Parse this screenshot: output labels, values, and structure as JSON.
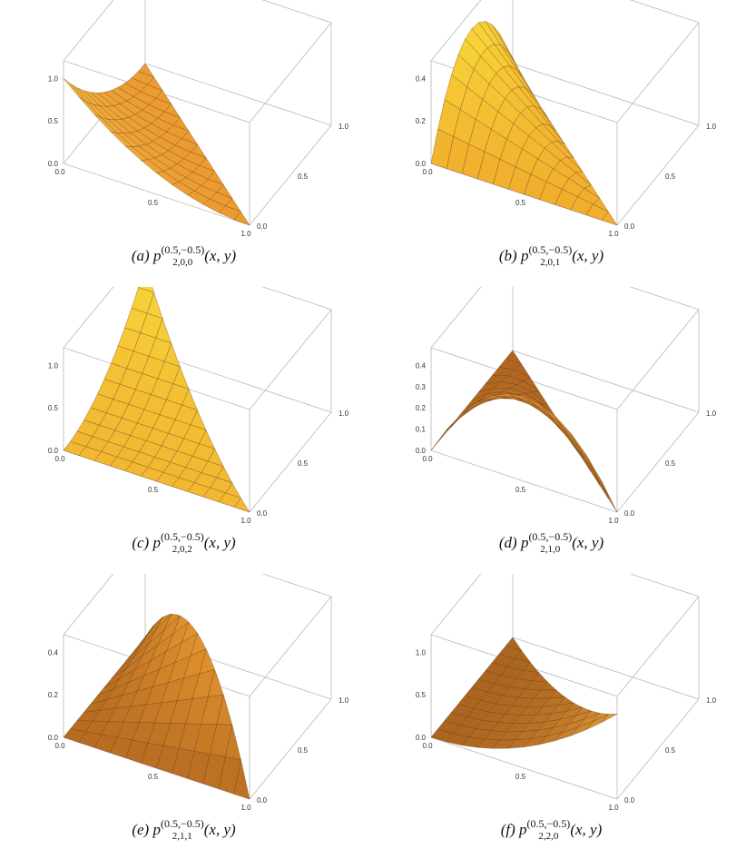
{
  "figure": {
    "panels": [
      {
        "id": "a",
        "caption": {
          "label": "(a)",
          "func": "p",
          "superscript": "(0.5,−0.5)",
          "subscript": "2,0,0",
          "args": "(x, y)"
        },
        "z_ticks": [
          "1.0",
          "0.5",
          "0.0"
        ],
        "x_ticks": [
          "0.0",
          "0.5",
          "1.0"
        ],
        "y_ticks": [
          "0.0",
          "0.5",
          "1.0"
        ],
        "z_max": 1.0,
        "surface": "(1-x)^2 region triangle, value 1 at origin corner",
        "colors": {
          "light": "#f7c64a",
          "dark": "#e8902a"
        }
      },
      {
        "id": "b",
        "caption": {
          "label": "(b)",
          "func": "p",
          "superscript": "(0.5,−0.5)",
          "subscript": "2,0,1",
          "args": "(x, y)"
        },
        "z_ticks": [
          "0.4",
          "0.2",
          "0.0"
        ],
        "x_ticks": [
          "0.0",
          "0.5",
          "1.0"
        ],
        "y_ticks": [
          "0.0",
          "0.5",
          "1.0"
        ],
        "z_max": 0.45,
        "colors": {
          "light": "#fbe13c",
          "dark": "#eea02a"
        }
      },
      {
        "id": "c",
        "caption": {
          "label": "(c)",
          "func": "p",
          "superscript": "(0.5,−0.5)",
          "subscript": "2,0,2",
          "args": "(x, y)"
        },
        "z_ticks": [
          "1.0",
          "0.5",
          "0.0"
        ],
        "x_ticks": [
          "0.0",
          "0.5",
          "1.0"
        ],
        "y_ticks": [
          "0.0",
          "0.5",
          "1.0"
        ],
        "z_max": 1.0,
        "colors": {
          "light": "#fbe23c",
          "dark": "#f0ad30"
        }
      },
      {
        "id": "d",
        "caption": {
          "label": "(d)",
          "func": "p",
          "superscript": "(0.5,−0.5)",
          "subscript": "2,1,0",
          "args": "(x, y)"
        },
        "z_ticks": [
          "0.4",
          "0.3",
          "0.2",
          "0.1",
          "0.0"
        ],
        "x_ticks": [
          "0.0",
          "0.5",
          "1.0"
        ],
        "y_ticks": [
          "0.0",
          "0.5",
          "1.0"
        ],
        "z_max": 0.4,
        "colors": {
          "light": "#e49434",
          "dark": "#a35a1c"
        }
      },
      {
        "id": "e",
        "caption": {
          "label": "(e)",
          "func": "p",
          "superscript": "(0.5,−0.5)",
          "subscript": "2,1,1",
          "args": "(x, y)"
        },
        "z_ticks": [
          "0.4",
          "0.2",
          "0.0"
        ],
        "x_ticks": [
          "0.0",
          "0.5",
          "1.0"
        ],
        "y_ticks": [
          "0.0",
          "0.5",
          "1.0"
        ],
        "z_max": 0.45,
        "colors": {
          "light": "#f2a235",
          "dark": "#a85e1c"
        }
      },
      {
        "id": "f",
        "caption": {
          "label": "(f)",
          "func": "p",
          "superscript": "(0.5,−0.5)",
          "subscript": "2,2,0",
          "args": "(x, y)"
        },
        "z_ticks": [
          "1.0",
          "0.5",
          "0.0"
        ],
        "x_ticks": [
          "0.0",
          "0.5",
          "1.0"
        ],
        "y_ticks": [
          "0.0",
          "0.5",
          "1.0"
        ],
        "z_max": 1.0,
        "colors": {
          "light": "#f5b040",
          "dark": "#9a5218"
        }
      }
    ]
  }
}
